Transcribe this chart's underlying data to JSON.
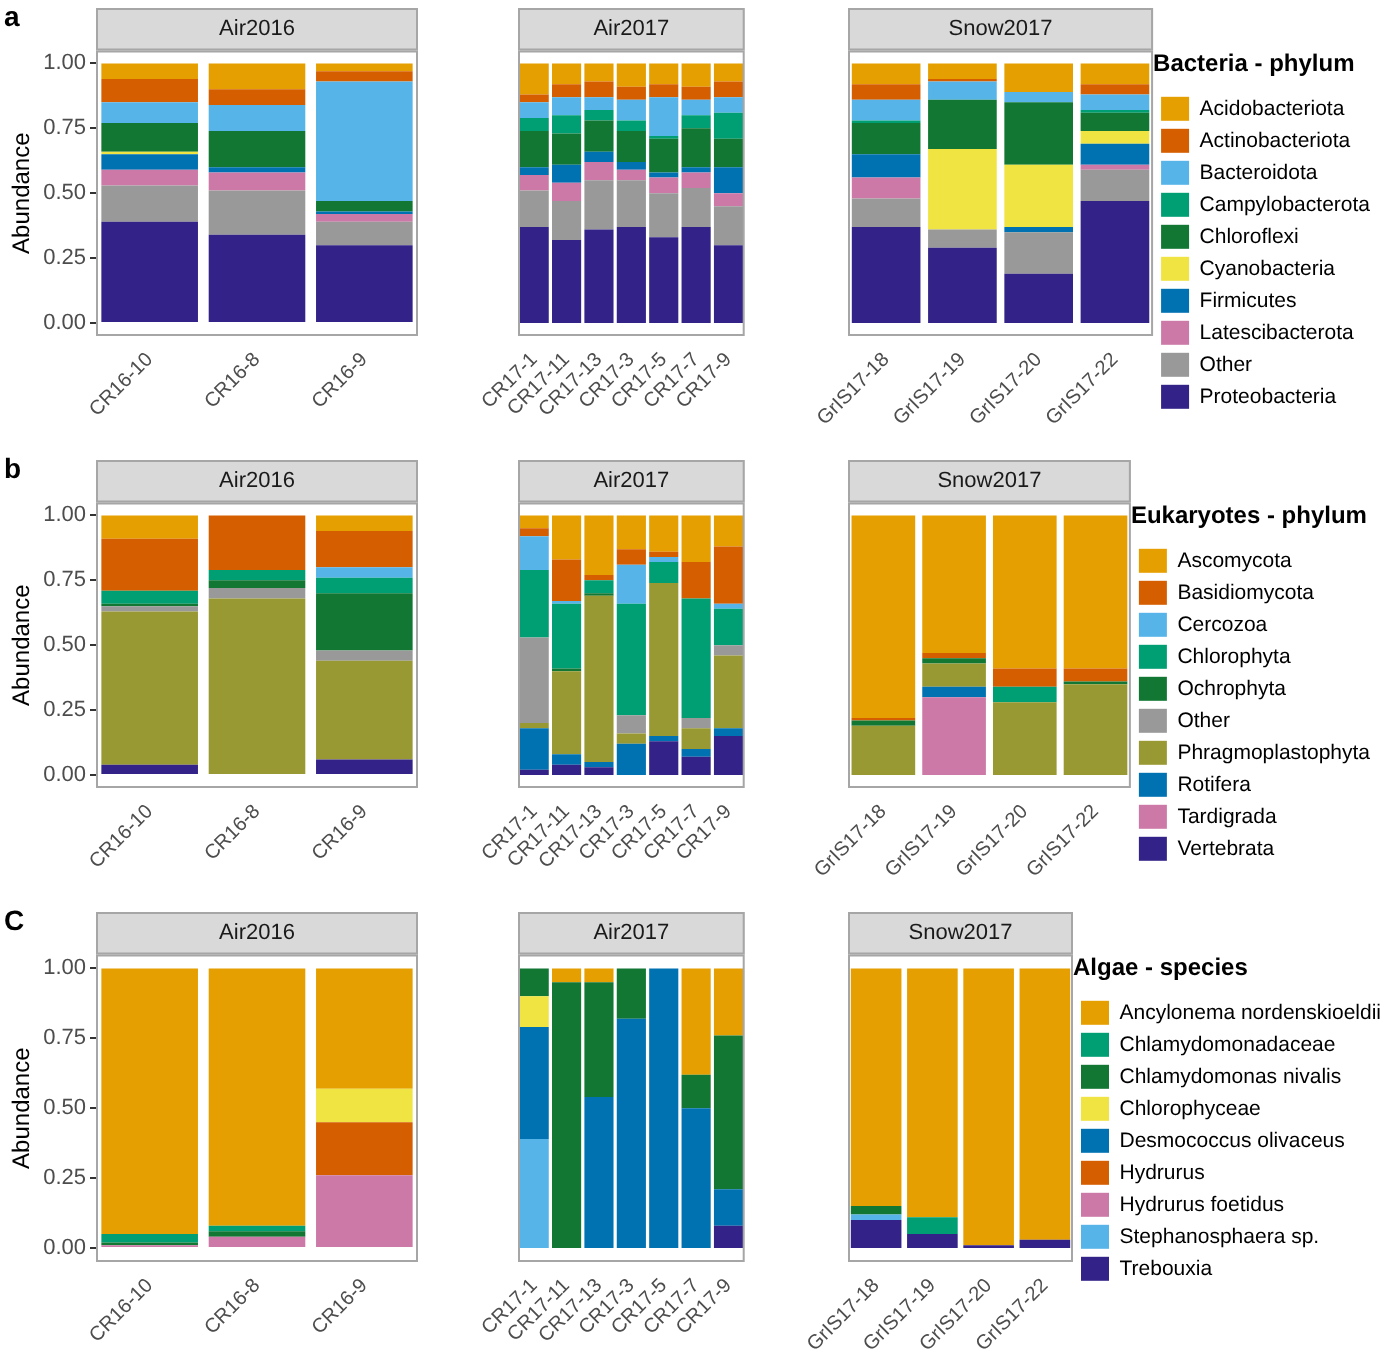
{
  "chart_data": [
    {
      "type": "bar",
      "title": "Air2016",
      "ylabel": "Abundance",
      "annotations": [
        "a"
      ],
      "stacked": true,
      "ylim": [
        -0.05,
        1.05
      ],
      "yticks": [
        {
          "value": 0,
          "label": "0.00"
        },
        {
          "value": 0.25,
          "label": "0.25"
        },
        {
          "value": 0.5,
          "label": "0.50"
        },
        {
          "value": 0.75,
          "label": "0.75"
        },
        {
          "value": 1,
          "label": "1.00"
        }
      ],
      "categories": [
        "CR16-10",
        "CR16-8",
        "CR16-9"
      ],
      "series": [
        {
          "color": "#332288",
          "values": [
            0.39,
            0.34,
            0.3
          ]
        },
        {
          "color": "#999999",
          "values": [
            0.14,
            0.17,
            0.09
          ]
        },
        {
          "color": "#cc79a7",
          "values": [
            0.06,
            0.07,
            0.03
          ]
        },
        {
          "color": "#0072b2",
          "values": [
            0.06,
            0.02,
            0.01
          ]
        },
        {
          "color": "#f0e442",
          "values": [
            0.01,
            0,
            0
          ]
        },
        {
          "color": "#117733",
          "values": [
            0.11,
            0.14,
            0.04
          ]
        },
        {
          "color": "#009e73",
          "values": [
            0,
            0,
            0
          ]
        },
        {
          "color": "#56b4e9",
          "values": [
            0.08,
            0.1,
            0.46
          ]
        },
        {
          "color": "#d55e00",
          "values": [
            0.09,
            0.06,
            0.04
          ]
        },
        {
          "color": "#e69f00",
          "values": [
            0.06,
            0.1,
            0.03
          ]
        }
      ]
    },
    {
      "type": "bar",
      "title": "Air2017",
      "stacked": true,
      "tick_labels": "x",
      "ylim": [
        -0.05,
        1.05
      ],
      "categories": [
        "CR17-1",
        "CR17-11",
        "CR17-13",
        "CR17-3",
        "CR17-5",
        "CR17-7",
        "CR17-9"
      ],
      "series": [
        {
          "color": "#332288",
          "values": [
            0.37,
            0.32,
            0.36,
            0.37,
            0.33,
            0.37,
            0.3
          ]
        },
        {
          "color": "#999999",
          "values": [
            0.14,
            0.15,
            0.19,
            0.18,
            0.17,
            0.15,
            0.15
          ]
        },
        {
          "color": "#cc79a7",
          "values": [
            0.06,
            0.07,
            0.07,
            0.04,
            0.06,
            0.06,
            0.05
          ]
        },
        {
          "color": "#0072b2",
          "values": [
            0.03,
            0.07,
            0.04,
            0.03,
            0.02,
            0.02,
            0.1
          ]
        },
        {
          "color": "#f0e442",
          "values": [
            0,
            0,
            0,
            0,
            0,
            0,
            0
          ]
        },
        {
          "color": "#117733",
          "values": [
            0.14,
            0.12,
            0.12,
            0.12,
            0.13,
            0.15,
            0.11
          ]
        },
        {
          "color": "#009e73",
          "values": [
            0.05,
            0.07,
            0.04,
            0.04,
            0.01,
            0.05,
            0.1
          ]
        },
        {
          "color": "#56b4e9",
          "values": [
            0.06,
            0.07,
            0.05,
            0.08,
            0.15,
            0.06,
            0.06
          ]
        },
        {
          "color": "#d55e00",
          "values": [
            0.03,
            0.05,
            0.06,
            0.05,
            0.05,
            0.05,
            0.06
          ]
        },
        {
          "color": "#e69f00",
          "values": [
            0.12,
            0.08,
            0.07,
            0.09,
            0.08,
            0.09,
            0.07
          ]
        }
      ]
    },
    {
      "type": "bar",
      "title": "Snow2017",
      "stacked": true,
      "tick_labels": "x",
      "legend": "right",
      "legend_title": "Bacteria - phylum",
      "ylim": [
        -0.05,
        1.05
      ],
      "categories": [
        "GrIS17-18",
        "GrIS17-19",
        "GrIS17-20",
        "GrIS17-22"
      ],
      "series": [
        {
          "name": "Proteobacteria",
          "color": "#332288",
          "values": [
            0.37,
            0.29,
            0.19,
            0.47
          ]
        },
        {
          "name": "Other",
          "color": "#999999",
          "values": [
            0.11,
            0.07,
            0.16,
            0.12
          ]
        },
        {
          "name": "Latescibacterota",
          "color": "#cc79a7",
          "values": [
            0.08,
            0,
            0,
            0.02
          ]
        },
        {
          "name": "Firmicutes",
          "color": "#0072b2",
          "values": [
            0.09,
            0,
            0.02,
            0.08
          ]
        },
        {
          "name": "Cyanobacteria",
          "color": "#f0e442",
          "values": [
            0,
            0.31,
            0.24,
            0.05
          ]
        },
        {
          "name": "Chloroflexi",
          "color": "#117733",
          "values": [
            0.12,
            0.19,
            0.24,
            0.07
          ]
        },
        {
          "name": "Campylobacterota",
          "color": "#009e73",
          "values": [
            0.01,
            0,
            0,
            0.01
          ]
        },
        {
          "name": "Bacteroidota",
          "color": "#56b4e9",
          "values": [
            0.08,
            0.07,
            0.04,
            0.06
          ]
        },
        {
          "name": "Actinobacteriota",
          "color": "#d55e00",
          "values": [
            0.06,
            0.01,
            0,
            0.04
          ]
        },
        {
          "name": "Acidobacteriota",
          "color": "#e69f00",
          "values": [
            0.08,
            0.06,
            0.11,
            0.08
          ]
        }
      ]
    },
    {
      "type": "bar",
      "title": "Air2016",
      "ylabel": "Abundance",
      "annotations": [
        "b"
      ],
      "stacked": true,
      "ylim": [
        -0.05,
        1.05
      ],
      "yticks": [
        {
          "value": 0,
          "label": "0.00"
        },
        {
          "value": 0.25,
          "label": "0.25"
        },
        {
          "value": 0.5,
          "label": "0.50"
        },
        {
          "value": 0.75,
          "label": "0.75"
        },
        {
          "value": 1,
          "label": "1.00"
        }
      ],
      "categories": [
        "CR16-10",
        "CR16-8",
        "CR16-9"
      ],
      "series": [
        {
          "color": "#332288",
          "values": [
            0.04,
            0,
            0.06
          ]
        },
        {
          "color": "#cc79a7",
          "values": [
            0,
            0,
            0
          ]
        },
        {
          "color": "#0072b2",
          "values": [
            0,
            0,
            0
          ]
        },
        {
          "color": "#999933",
          "values": [
            0.59,
            0.68,
            0.38
          ]
        },
        {
          "color": "#999999",
          "values": [
            0.02,
            0.04,
            0.04
          ]
        },
        {
          "color": "#117733",
          "values": [
            0.01,
            0.03,
            0.22
          ]
        },
        {
          "color": "#009e73",
          "values": [
            0.05,
            0.04,
            0.06
          ]
        },
        {
          "color": "#56b4e9",
          "values": [
            0,
            0,
            0.04
          ]
        },
        {
          "color": "#d55e00",
          "values": [
            0.2,
            0.21,
            0.14
          ]
        },
        {
          "color": "#e69f00",
          "values": [
            0.09,
            0,
            0.06
          ]
        }
      ]
    },
    {
      "type": "bar",
      "title": "Air2017",
      "stacked": true,
      "tick_labels": "x",
      "ylim": [
        -0.05,
        1.05
      ],
      "categories": [
        "CR17-1",
        "CR17-11",
        "CR17-13",
        "CR17-3",
        "CR17-5",
        "CR17-7",
        "CR17-9"
      ],
      "series": [
        {
          "color": "#332288",
          "values": [
            0.02,
            0.04,
            0.03,
            0,
            0.13,
            0.07,
            0.15
          ]
        },
        {
          "color": "#cc79a7",
          "values": [
            0,
            0,
            0,
            0,
            0,
            0,
            0
          ]
        },
        {
          "color": "#0072b2",
          "values": [
            0.16,
            0.04,
            0.02,
            0.12,
            0.02,
            0.03,
            0.03
          ]
        },
        {
          "color": "#999933",
          "values": [
            0.02,
            0.32,
            0.64,
            0.04,
            0.59,
            0.08,
            0.28
          ]
        },
        {
          "color": "#999999",
          "values": [
            0.33,
            0,
            0,
            0.07,
            0,
            0.04,
            0.04
          ]
        },
        {
          "color": "#117733",
          "values": [
            0,
            0.01,
            0.01,
            0,
            0,
            0,
            0
          ]
        },
        {
          "color": "#009e73",
          "values": [
            0.26,
            0.25,
            0.05,
            0.43,
            0.08,
            0.46,
            0.14
          ]
        },
        {
          "color": "#56b4e9",
          "values": [
            0.13,
            0.01,
            0,
            0.15,
            0.02,
            0,
            0.02
          ]
        },
        {
          "color": "#d55e00",
          "values": [
            0.03,
            0.16,
            0.02,
            0.06,
            0.02,
            0.14,
            0.22
          ]
        },
        {
          "color": "#e69f00",
          "values": [
            0.05,
            0.17,
            0.23,
            0.13,
            0.14,
            0.18,
            0.12
          ]
        }
      ]
    },
    {
      "type": "bar",
      "title": "Snow2017",
      "stacked": true,
      "tick_labels": "x",
      "legend": "right",
      "legend_title": "Eukaryotes - phylum",
      "ylim": [
        -0.05,
        1.05
      ],
      "categories": [
        "GrIS17-18",
        "GrIS17-19",
        "GrIS17-20",
        "GrIS17-22"
      ],
      "series": [
        {
          "name": "Vertebrata",
          "color": "#332288",
          "values": [
            0,
            0,
            0,
            0
          ]
        },
        {
          "name": "Tardigrada",
          "color": "#cc79a7",
          "values": [
            0,
            0.3,
            0,
            0
          ]
        },
        {
          "name": "Rotifera",
          "color": "#0072b2",
          "values": [
            0,
            0.04,
            0,
            0
          ]
        },
        {
          "name": "Phragmoplastophyta",
          "color": "#999933",
          "values": [
            0.19,
            0.09,
            0.28,
            0.35
          ]
        },
        {
          "name": "Other",
          "color": "#999999",
          "values": [
            0,
            0,
            0,
            0
          ]
        },
        {
          "name": "Ochrophyta",
          "color": "#117733",
          "values": [
            0.02,
            0.02,
            0,
            0.01
          ]
        },
        {
          "name": "Chlorophyta",
          "color": "#009e73",
          "values": [
            0,
            0,
            0.06,
            0
          ]
        },
        {
          "name": "Cercozoa",
          "color": "#56b4e9",
          "values": [
            0,
            0,
            0,
            0
          ]
        },
        {
          "name": "Basidiomycota",
          "color": "#d55e00",
          "values": [
            0.01,
            0.02,
            0.07,
            0.05
          ]
        },
        {
          "name": "Ascomycota",
          "color": "#e69f00",
          "values": [
            0.78,
            0.53,
            0.59,
            0.59
          ]
        }
      ]
    },
    {
      "type": "bar",
      "title": "Air2016",
      "ylabel": "Abundance",
      "annotations": [
        "C"
      ],
      "stacked": true,
      "ylim": [
        -0.05,
        1.05
      ],
      "yticks": [
        {
          "value": 0,
          "label": "0.00"
        },
        {
          "value": 0.25,
          "label": "0.25"
        },
        {
          "value": 0.5,
          "label": "0.50"
        },
        {
          "value": 0.75,
          "label": "0.75"
        },
        {
          "value": 1,
          "label": "1.00"
        }
      ],
      "categories": [
        "CR16-10",
        "CR16-8",
        "CR16-9"
      ],
      "series": [
        {
          "color": "#332288",
          "values": [
            0,
            0,
            0
          ]
        },
        {
          "color": "#56b4e9",
          "values": [
            0,
            0,
            0
          ]
        },
        {
          "color": "#cc79a7",
          "values": [
            0.01,
            0.04,
            0.26
          ]
        },
        {
          "color": "#d55e00",
          "values": [
            0,
            0,
            0.19
          ]
        },
        {
          "color": "#0072b2",
          "values": [
            0,
            0,
            0
          ]
        },
        {
          "color": "#f0e442",
          "values": [
            0,
            0,
            0.12
          ]
        },
        {
          "color": "#117733",
          "values": [
            0.01,
            0.02,
            0
          ]
        },
        {
          "color": "#009e73",
          "values": [
            0.03,
            0.02,
            0
          ]
        },
        {
          "color": "#e69f00",
          "values": [
            0.95,
            0.92,
            0.43
          ]
        }
      ]
    },
    {
      "type": "bar",
      "title": "Air2017",
      "stacked": true,
      "tick_labels": "x",
      "ylim": [
        -0.05,
        1.05
      ],
      "categories": [
        "CR17-1",
        "CR17-11",
        "CR17-13",
        "CR17-3",
        "CR17-5",
        "CR17-7",
        "CR17-9"
      ],
      "series": [
        {
          "color": "#332288",
          "values": [
            0,
            0,
            0,
            0,
            0,
            0,
            0.08
          ]
        },
        {
          "color": "#56b4e9",
          "values": [
            0.39,
            0,
            0,
            0,
            0,
            0,
            0
          ]
        },
        {
          "color": "#cc79a7",
          "values": [
            0,
            0,
            0,
            0,
            0,
            0,
            0
          ]
        },
        {
          "color": "#d55e00",
          "values": [
            0,
            0,
            0,
            0,
            0,
            0,
            0
          ]
        },
        {
          "color": "#0072b2",
          "values": [
            0.4,
            0,
            0.54,
            0.82,
            1,
            0.5,
            0.13
          ]
        },
        {
          "color": "#f0e442",
          "values": [
            0.11,
            0,
            0,
            0,
            0,
            0,
            0
          ]
        },
        {
          "color": "#117733",
          "values": [
            0.1,
            0.95,
            0.41,
            0.18,
            0,
            0.12,
            0.55
          ]
        },
        {
          "color": "#009e73",
          "values": [
            0,
            0,
            0,
            0,
            0,
            0,
            0
          ]
        },
        {
          "color": "#e69f00",
          "values": [
            0,
            0.05,
            0.05,
            0,
            0,
            0.38,
            0.24
          ]
        }
      ]
    },
    {
      "type": "bar",
      "title": "Snow2017",
      "stacked": true,
      "tick_labels": "x",
      "legend": "right",
      "legend_title": "Algae - species",
      "ylim": [
        -0.05,
        1.05
      ],
      "categories": [
        "GrIS17-18",
        "GrIS17-19",
        "GrIS17-20",
        "GrIS17-22"
      ],
      "series": [
        {
          "name": "Trebouxia",
          "color": "#332288",
          "values": [
            0.1,
            0.05,
            0.01,
            0.03
          ]
        },
        {
          "name": "Stephanosphaera sp.",
          "color": "#56b4e9",
          "values": [
            0.02,
            0,
            0,
            0
          ]
        },
        {
          "name": "Hydrurus foetidus",
          "color": "#cc79a7",
          "values": [
            0,
            0,
            0,
            0
          ]
        },
        {
          "name": "Hydrurus",
          "color": "#d55e00",
          "values": [
            0,
            0,
            0,
            0
          ]
        },
        {
          "name": "Desmococcus olivaceus",
          "color": "#0072b2",
          "values": [
            0,
            0,
            0,
            0
          ]
        },
        {
          "name": "Chlorophyceae",
          "color": "#f0e442",
          "values": [
            0,
            0,
            0,
            0
          ]
        },
        {
          "name": "Chlamydomonas nivalis",
          "color": "#117733",
          "values": [
            0.03,
            0,
            0,
            0
          ]
        },
        {
          "name": "Chlamydomonadaceae",
          "color": "#009e73",
          "values": [
            0,
            0.06,
            0,
            0
          ]
        },
        {
          "name": "Ancylonema nordenskioeldii",
          "color": "#e69f00",
          "values": [
            0.85,
            0.89,
            0.99,
            0.97
          ]
        }
      ]
    }
  ]
}
